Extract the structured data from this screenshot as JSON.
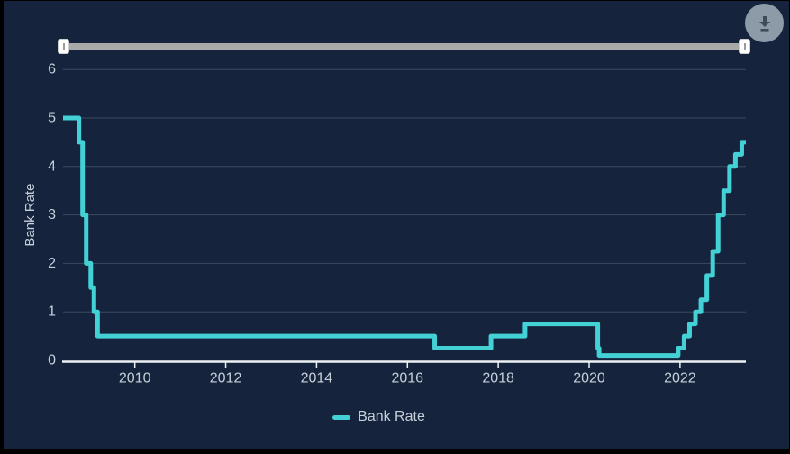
{
  "window": {
    "background": "#15243c",
    "frame": "#000000"
  },
  "toolbar": {
    "download_button": {
      "icon": "download-icon",
      "bg": "#8d9aa7",
      "icon_color": "#3d4c5a"
    }
  },
  "range_slider": {
    "track_color": "#a9a9a9",
    "handle_color": "#ffffff",
    "start_position": 0,
    "end_position": 1
  },
  "colors": {
    "text": "#c7d0da",
    "grid": "#3a4a5f",
    "axis": "#eef1f3",
    "line": "#43d1d6"
  },
  "legend": {
    "label": "Bank Rate",
    "swatch_color": "#43d1d6"
  },
  "chart_data": {
    "type": "line",
    "step": true,
    "title": "",
    "xlabel": "",
    "ylabel": "Bank Rate",
    "xlim": [
      2008.42,
      2023.45
    ],
    "ylim": [
      0,
      6
    ],
    "xticks": [
      2010,
      2012,
      2014,
      2016,
      2018,
      2020,
      2022
    ],
    "yticks": [
      0,
      1,
      2,
      3,
      4,
      5,
      6
    ],
    "grid": "horizontal",
    "legend_position": "bottom-center",
    "series": [
      {
        "name": "Bank Rate",
        "color": "#43d1d6",
        "points": [
          [
            2008.42,
            5.0
          ],
          [
            2008.77,
            4.5
          ],
          [
            2008.85,
            3.0
          ],
          [
            2008.93,
            2.0
          ],
          [
            2009.03,
            1.5
          ],
          [
            2009.1,
            1.0
          ],
          [
            2009.18,
            0.5
          ],
          [
            2016.6,
            0.25
          ],
          [
            2017.84,
            0.5
          ],
          [
            2018.59,
            0.75
          ],
          [
            2020.19,
            0.25
          ],
          [
            2020.22,
            0.1
          ],
          [
            2021.96,
            0.25
          ],
          [
            2022.09,
            0.5
          ],
          [
            2022.21,
            0.75
          ],
          [
            2022.34,
            1.0
          ],
          [
            2022.46,
            1.25
          ],
          [
            2022.59,
            1.75
          ],
          [
            2022.72,
            2.25
          ],
          [
            2022.84,
            3.0
          ],
          [
            2022.96,
            3.5
          ],
          [
            2023.09,
            4.0
          ],
          [
            2023.22,
            4.25
          ],
          [
            2023.36,
            4.5
          ],
          [
            2023.45,
            4.5
          ]
        ]
      }
    ]
  }
}
